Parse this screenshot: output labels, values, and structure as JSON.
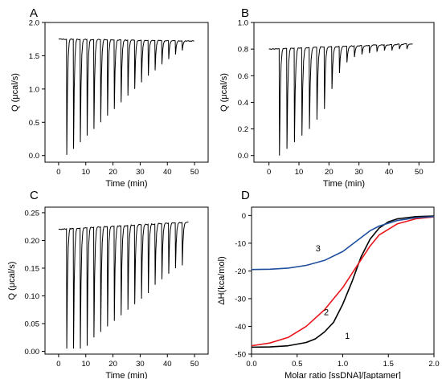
{
  "chart_data": [
    {
      "type": "line",
      "panel_label": "A",
      "xlabel": "Time (min)",
      "ylabel": "Q (μcal/s)",
      "xlim": [
        -5,
        55
      ],
      "ylim": [
        -0.1,
        2.0
      ],
      "xticks": [
        0,
        10,
        20,
        30,
        40,
        50
      ],
      "yticks": [
        0.0,
        0.5,
        1.0,
        1.5,
        2.0
      ],
      "ytick_decimals": 1,
      "baseline_start": 1.75,
      "baseline_end": 1.72,
      "data_x_range": [
        0,
        50
      ],
      "injection_times": [
        3,
        5.5,
        8,
        10.5,
        13,
        15.5,
        18,
        20.5,
        23,
        25.5,
        28,
        30.5,
        33,
        35.5,
        38,
        40.5,
        43,
        45.5
      ],
      "injection_minima": [
        0.01,
        0.1,
        0.2,
        0.3,
        0.4,
        0.5,
        0.6,
        0.7,
        0.8,
        0.9,
        1.0,
        1.1,
        1.2,
        1.28,
        1.37,
        1.45,
        1.52,
        1.58
      ]
    },
    {
      "type": "line",
      "panel_label": "B",
      "xlabel": "Time (min)",
      "ylabel": "Q (μcal/s)",
      "xlim": [
        -5,
        55
      ],
      "ylim": [
        -0.05,
        1.0
      ],
      "xticks": [
        0,
        10,
        20,
        30,
        40,
        50
      ],
      "yticks": [
        0.0,
        0.2,
        0.4,
        0.6,
        0.8,
        1.0
      ],
      "ytick_decimals": 1,
      "baseline_start": 0.8,
      "baseline_end": 0.84,
      "data_x_range": [
        0,
        48
      ],
      "injection_times": [
        3.5,
        6,
        8.5,
        11,
        13.5,
        16,
        18.5,
        21,
        23.5,
        26,
        28.5,
        31,
        33.5,
        36,
        38.5,
        41,
        43.5,
        46
      ],
      "injection_minima": [
        0.0,
        0.05,
        0.1,
        0.15,
        0.2,
        0.27,
        0.35,
        0.5,
        0.62,
        0.7,
        0.74,
        0.76,
        0.77,
        0.78,
        0.79,
        0.79,
        0.8,
        0.8
      ]
    },
    {
      "type": "line",
      "panel_label": "C",
      "xlabel": "Time (min)",
      "ylabel": "Q (μcal/s)",
      "xlim": [
        -5,
        55
      ],
      "ylim": [
        -0.005,
        0.26
      ],
      "xticks": [
        0,
        10,
        20,
        30,
        40,
        50
      ],
      "yticks": [
        0.0,
        0.05,
        0.1,
        0.15,
        0.2,
        0.25
      ],
      "ytick_decimals": 2,
      "baseline_start": 0.22,
      "baseline_end": 0.233,
      "data_x_range": [
        0,
        48
      ],
      "injection_times": [
        3,
        5.5,
        8,
        10.5,
        13,
        15.5,
        18,
        20.5,
        23,
        25.5,
        28,
        30.5,
        33,
        35.5,
        38,
        40.5,
        43,
        45.5
      ],
      "injection_minima": [
        0.005,
        0.005,
        0.005,
        0.01,
        0.025,
        0.035,
        0.045,
        0.055,
        0.065,
        0.075,
        0.085,
        0.095,
        0.105,
        0.12,
        0.13,
        0.14,
        0.15,
        0.155
      ]
    },
    {
      "type": "line",
      "panel_label": "D",
      "xlabel": "Molar ratio [ssDNA]/[aptamer]",
      "ylabel": "ΔH(kca/mol)",
      "xlim": [
        0,
        2
      ],
      "ylim": [
        -50,
        3
      ],
      "xticks": [
        0.0,
        0.5,
        1.0,
        1.5,
        2.0
      ],
      "yticks": [
        -50,
        -40,
        -30,
        -20,
        -10,
        0
      ],
      "series": [
        {
          "name": "1",
          "color": "#000000",
          "x": [
            0.0,
            0.2,
            0.4,
            0.6,
            0.7,
            0.8,
            0.9,
            1.0,
            1.1,
            1.15,
            1.2,
            1.3,
            1.4,
            1.5,
            1.6,
            1.8,
            2.0
          ],
          "y": [
            -47.5,
            -47.4,
            -47.0,
            -45.8,
            -44.5,
            -42.0,
            -38.5,
            -32.0,
            -24.0,
            -19.5,
            -15.0,
            -8.5,
            -4.5,
            -2.3,
            -1.2,
            -0.4,
            -0.2
          ]
        },
        {
          "name": "2",
          "color": "#e8161b",
          "x": [
            0.0,
            0.2,
            0.4,
            0.6,
            0.8,
            1.0,
            1.1,
            1.2,
            1.3,
            1.4,
            1.6,
            1.8,
            2.0
          ],
          "y": [
            -47.0,
            -46.0,
            -44.0,
            -40.0,
            -34.0,
            -26.0,
            -21.0,
            -16.0,
            -11.0,
            -7.0,
            -3.0,
            -1.2,
            -0.5
          ]
        },
        {
          "name": "3",
          "color": "#1d4f9c",
          "x": [
            0.0,
            0.2,
            0.4,
            0.6,
            0.8,
            1.0,
            1.1,
            1.2,
            1.3,
            1.4,
            1.6,
            1.8,
            2.0
          ],
          "y": [
            -19.5,
            -19.4,
            -19.0,
            -18.0,
            -16.2,
            -13.0,
            -10.5,
            -8.0,
            -5.5,
            -3.8,
            -1.8,
            -0.8,
            -0.4
          ]
        }
      ],
      "curve_labels": [
        {
          "text": "1",
          "x": 1.05,
          "y": -44.5
        },
        {
          "text": "2",
          "x": 0.82,
          "y": -36.0
        },
        {
          "text": "3",
          "x": 0.73,
          "y": -13.0
        }
      ]
    }
  ]
}
